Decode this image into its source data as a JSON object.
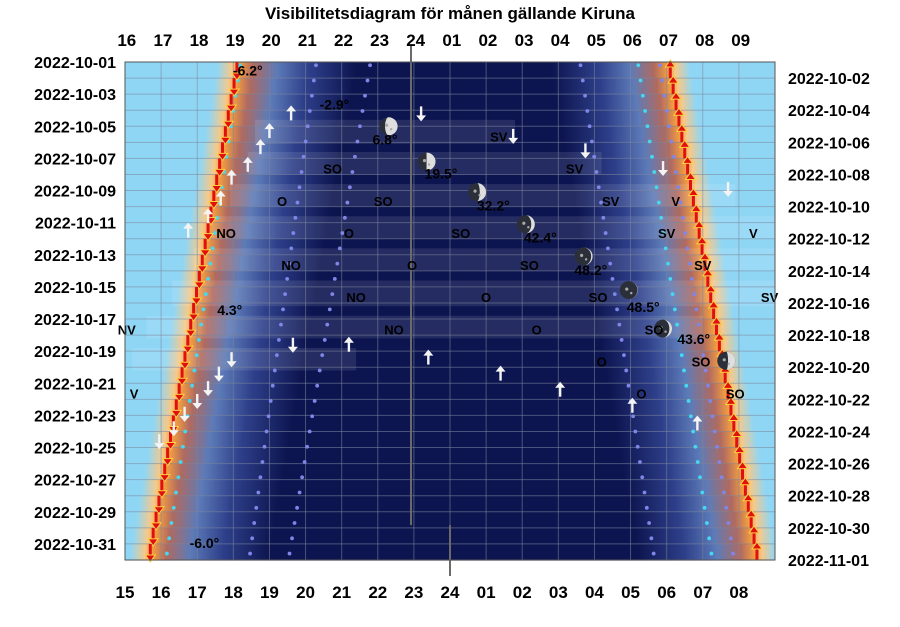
{
  "chart_data": {
    "type": "scatter",
    "title": "Visibilitetsdiagram för månen gällande Kiruna",
    "colors": {
      "night": "#0d1550",
      "day": "#8fd6f5",
      "twilight_glow": "#f5a040",
      "sun_arrow": "#e01010",
      "grid": "#7c869c",
      "moon_dots": "#7f86e8"
    },
    "x_top_ticks": [
      "16",
      "17",
      "18",
      "19",
      "20",
      "21",
      "22",
      "23",
      "24",
      "01",
      "02",
      "03",
      "04",
      "05",
      "06",
      "07",
      "08",
      "09"
    ],
    "x_bottom_ticks": [
      "15",
      "16",
      "17",
      "18",
      "19",
      "20",
      "21",
      "22",
      "23",
      "24",
      "01",
      "02",
      "03",
      "04",
      "05",
      "06",
      "07",
      "08"
    ],
    "left_dates": [
      "2022-10-01",
      "2022-10-03",
      "2022-10-05",
      "2022-10-07",
      "2022-10-09",
      "2022-10-11",
      "2022-10-13",
      "2022-10-15",
      "2022-10-17",
      "2022-10-19",
      "2022-10-21",
      "2022-10-23",
      "2022-10-25",
      "2022-10-27",
      "2022-10-29",
      "2022-10-31"
    ],
    "right_dates": [
      "2022-10-02",
      "2022-10-04",
      "2022-10-06",
      "2022-10-08",
      "2022-10-10",
      "2022-10-12",
      "2022-10-14",
      "2022-10-16",
      "2022-10-18",
      "2022-10-20",
      "2022-10-22",
      "2022-10-24",
      "2022-10-26",
      "2022-10-28",
      "2022-10-30",
      "2022-11-01"
    ],
    "sun_set_hours": [
      18.1,
      18.02,
      17.94,
      17.86,
      17.78,
      17.7,
      17.62,
      17.54,
      17.46,
      17.38,
      17.3,
      17.22,
      17.14,
      17.06,
      16.98,
      16.9,
      16.82,
      16.74,
      16.66,
      16.58,
      16.5,
      16.42,
      16.34,
      16.26,
      16.18,
      16.1,
      16.02,
      15.94,
      15.86,
      15.78,
      15.7
    ],
    "sun_rise_hours": [
      30.1,
      30.18,
      30.26,
      30.34,
      30.42,
      30.5,
      30.58,
      30.66,
      30.74,
      30.82,
      30.9,
      30.98,
      31.06,
      31.14,
      31.22,
      31.3,
      31.38,
      31.46,
      31.54,
      31.62,
      31.7,
      31.78,
      31.86,
      31.94,
      32.02,
      32.1,
      32.18,
      32.26,
      32.34,
      32.42,
      32.5
    ],
    "sun_altitude_labels": [
      {
        "text": "-6.2°",
        "hour": 18.4,
        "day": 1.6
      },
      {
        "text": "4.3°",
        "hour": 17.9,
        "day": 16.5
      },
      {
        "text": "-6.0°",
        "hour": 17.2,
        "day": 31.0
      }
    ],
    "moon_phases": [
      {
        "hour": 22.3,
        "day": 5.0,
        "phase": 0.3
      },
      {
        "hour": 23.35,
        "day": 7.2,
        "phase": 0.5
      },
      {
        "hour": 24.75,
        "day": 9.1,
        "phase": 0.65
      },
      {
        "hour": 26.1,
        "day": 11.1,
        "phase": 0.8
      },
      {
        "hour": 27.7,
        "day": 13.1,
        "phase": 0.92
      },
      {
        "hour": 28.95,
        "day": 15.2,
        "phase": 0.98
      },
      {
        "hour": 29.9,
        "day": 17.6,
        "phase": 0.85
      },
      {
        "hour": 31.65,
        "day": 19.6,
        "phase": 0.6
      }
    ],
    "moon_altitude_labels": [
      {
        "text": "-2.9°",
        "hour": 20.8,
        "day": 3.7
      },
      {
        "text": "6.8°",
        "hour": 22.2,
        "day": 5.9
      },
      {
        "text": "19.5°",
        "hour": 23.75,
        "day": 8.0
      },
      {
        "text": "32.2°",
        "hour": 25.2,
        "day": 10.0
      },
      {
        "text": "42.4°",
        "hour": 26.5,
        "day": 12.0
      },
      {
        "text": "48.2°",
        "hour": 27.9,
        "day": 14.0
      },
      {
        "text": "48.5°",
        "hour": 29.35,
        "day": 16.3
      },
      {
        "text": "43.6°",
        "hour": 30.75,
        "day": 18.3
      }
    ],
    "moon_arrows": [
      {
        "dir": "up",
        "hour": 19.6,
        "day": 4.2
      },
      {
        "dir": "down",
        "hour": 23.2,
        "day": 4.2
      },
      {
        "dir": "up",
        "hour": 19.0,
        "day": 5.3
      },
      {
        "dir": "down",
        "hour": 25.75,
        "day": 5.6
      },
      {
        "dir": "up",
        "hour": 18.75,
        "day": 6.3
      },
      {
        "dir": "down",
        "hour": 27.75,
        "day": 6.5
      },
      {
        "dir": "up",
        "hour": 18.4,
        "day": 7.4
      },
      {
        "dir": "down",
        "hour": 29.9,
        "day": 7.6
      },
      {
        "dir": "up",
        "hour": 17.95,
        "day": 8.2
      },
      {
        "dir": "down",
        "hour": 31.7,
        "day": 8.9
      },
      {
        "dir": "up",
        "hour": 17.65,
        "day": 9.5
      },
      {
        "dir": "up",
        "hour": 17.3,
        "day": 10.6
      },
      {
        "dir": "up",
        "hour": 16.75,
        "day": 11.5
      },
      {
        "dir": "down",
        "hour": 19.65,
        "day": 18.6
      },
      {
        "dir": "down",
        "hour": 17.95,
        "day": 19.5
      },
      {
        "dir": "down",
        "hour": 17.6,
        "day": 20.4
      },
      {
        "dir": "down",
        "hour": 17.3,
        "day": 21.3
      },
      {
        "dir": "down",
        "hour": 17.0,
        "day": 22.1
      },
      {
        "dir": "down",
        "hour": 16.65,
        "day": 22.9
      },
      {
        "dir": "down",
        "hour": 16.35,
        "day": 23.8
      },
      {
        "dir": "down",
        "hour": 15.95,
        "day": 24.6
      },
      {
        "dir": "up",
        "hour": 21.2,
        "day": 18.6
      },
      {
        "dir": "up",
        "hour": 23.4,
        "day": 19.4
      },
      {
        "dir": "up",
        "hour": 25.4,
        "day": 20.4
      },
      {
        "dir": "up",
        "hour": 27.05,
        "day": 21.4
      },
      {
        "dir": "up",
        "hour": 29.05,
        "day": 22.4
      },
      {
        "dir": "up",
        "hour": 30.85,
        "day": 23.5
      }
    ],
    "compass_labels": [
      {
        "text": "SV",
        "hour": 25.35,
        "day": 5.7
      },
      {
        "text": "SO",
        "hour": 20.75,
        "day": 7.7
      },
      {
        "text": "SV",
        "hour": 27.45,
        "day": 7.7
      },
      {
        "text": "O",
        "hour": 19.35,
        "day": 9.7
      },
      {
        "text": "SO",
        "hour": 22.15,
        "day": 9.7
      },
      {
        "text": "SV",
        "hour": 28.45,
        "day": 9.7
      },
      {
        "text": "V",
        "hour": 30.25,
        "day": 9.7
      },
      {
        "text": "NO",
        "hour": 17.8,
        "day": 11.7
      },
      {
        "text": "O",
        "hour": 21.2,
        "day": 11.7
      },
      {
        "text": "SO",
        "hour": 24.3,
        "day": 11.7
      },
      {
        "text": "SV",
        "hour": 30.0,
        "day": 11.7
      },
      {
        "text": "V",
        "hour": 32.4,
        "day": 11.7
      },
      {
        "text": "NO",
        "hour": 19.6,
        "day": 13.7
      },
      {
        "text": "O",
        "hour": 22.95,
        "day": 13.7
      },
      {
        "text": "SO",
        "hour": 26.2,
        "day": 13.7
      },
      {
        "text": "SV",
        "hour": 31.0,
        "day": 13.7
      },
      {
        "text": "NO",
        "hour": 21.4,
        "day": 15.7
      },
      {
        "text": "O",
        "hour": 25.0,
        "day": 15.7
      },
      {
        "text": "SO",
        "hour": 28.1,
        "day": 15.7
      },
      {
        "text": "SV",
        "hour": 32.85,
        "day": 15.7
      },
      {
        "text": "NV",
        "hour": 15.05,
        "day": 17.7
      },
      {
        "text": "NO",
        "hour": 22.45,
        "day": 17.7
      },
      {
        "text": "O",
        "hour": 26.4,
        "day": 17.7
      },
      {
        "text": "SO",
        "hour": 29.65,
        "day": 17.7
      },
      {
        "text": "O",
        "hour": 28.2,
        "day": 19.7
      },
      {
        "text": "SO",
        "hour": 30.95,
        "day": 19.7
      },
      {
        "text": "V",
        "hour": 15.25,
        "day": 21.7
      },
      {
        "text": "O",
        "hour": 29.3,
        "day": 21.7
      },
      {
        "text": "SO",
        "hour": 31.9,
        "day": 21.7
      }
    ],
    "xlabel": "",
    "ylabel": "",
    "grid": true
  }
}
